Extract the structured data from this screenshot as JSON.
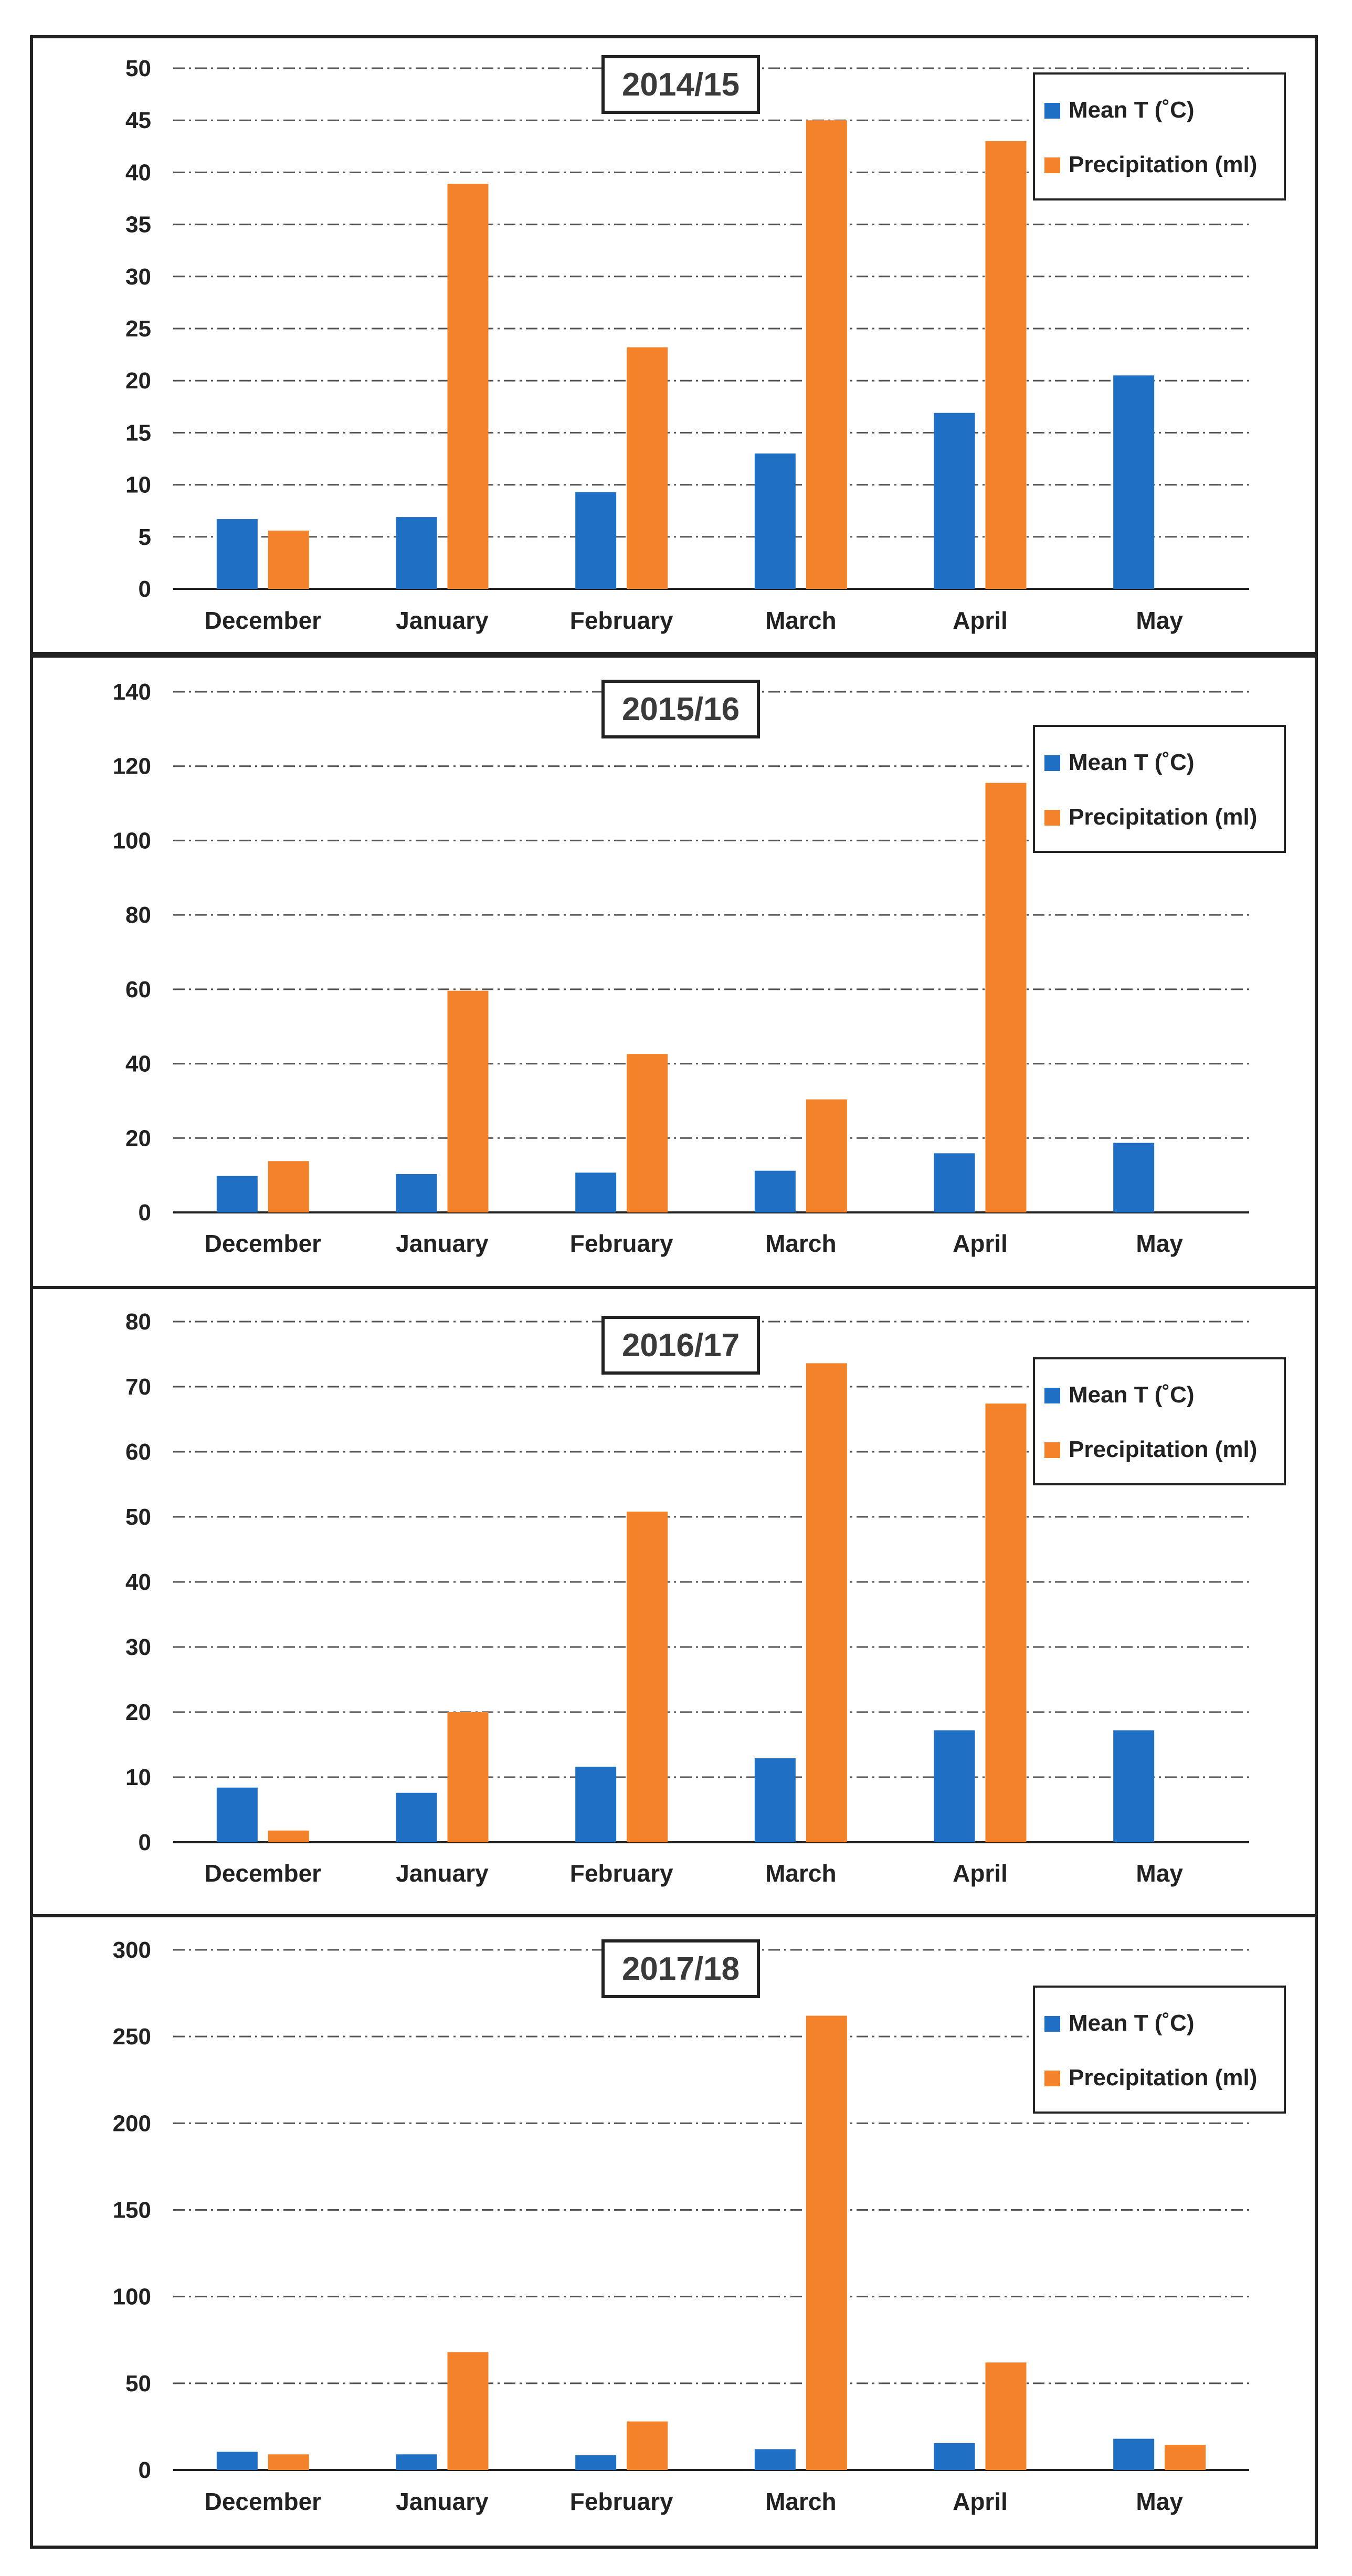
{
  "chart_data": [
    {
      "type": "bar",
      "title": "2014/15",
      "categories": [
        "December",
        "January",
        "February",
        "March",
        "April",
        "May"
      ],
      "series": [
        {
          "name": "Mean T (˚C)",
          "values": [
            6.7,
            6.9,
            9.3,
            13.0,
            16.9,
            20.5
          ]
        },
        {
          "name": "Precipitation (ml)",
          "values": [
            5.6,
            38.9,
            23.2,
            45.0,
            43.0,
            null
          ]
        }
      ],
      "ylim": [
        0,
        50
      ],
      "yticks": [
        0,
        5,
        10,
        15,
        20,
        25,
        30,
        35,
        40,
        45,
        50
      ],
      "grid": true,
      "legend": "top-right"
    },
    {
      "type": "bar",
      "title": "2015/16",
      "categories": [
        "December",
        "January",
        "February",
        "March",
        "April",
        "May"
      ],
      "series": [
        {
          "name": "Mean T (˚C)",
          "values": [
            9.8,
            10.3,
            10.7,
            11.2,
            15.9,
            18.7
          ]
        },
        {
          "name": "Precipitation (ml)",
          "values": [
            13.8,
            59.6,
            42.6,
            30.4,
            115.5,
            null
          ]
        }
      ],
      "ylim": [
        0,
        140
      ],
      "yticks": [
        0,
        20,
        40,
        60,
        80,
        100,
        120,
        140
      ],
      "grid": true,
      "legend": "top-right"
    },
    {
      "type": "bar",
      "title": "2016/17",
      "categories": [
        "December",
        "January",
        "February",
        "March",
        "April",
        "May"
      ],
      "series": [
        {
          "name": "Mean T (˚C)",
          "values": [
            8.4,
            7.6,
            11.6,
            12.9,
            17.2,
            17.2
          ]
        },
        {
          "name": "Precipitation (ml)",
          "values": [
            1.8,
            20.0,
            50.8,
            73.6,
            67.4,
            null
          ]
        }
      ],
      "ylim": [
        0,
        80
      ],
      "yticks": [
        0,
        10,
        20,
        30,
        40,
        50,
        60,
        70,
        80
      ],
      "grid": true,
      "legend": "top-right"
    },
    {
      "type": "bar",
      "title": "2017/18",
      "categories": [
        "December",
        "January",
        "February",
        "March",
        "April",
        "May"
      ],
      "series": [
        {
          "name": "Mean T (˚C)",
          "values": [
            10.5,
            9.0,
            8.5,
            12.0,
            15.5,
            18.0
          ]
        },
        {
          "name": "Precipitation (ml)",
          "values": [
            9.0,
            68.0,
            28.0,
            262.0,
            62.0,
            14.5
          ]
        }
      ],
      "ylim": [
        0,
        300
      ],
      "yticks": [
        0,
        50,
        100,
        150,
        200,
        250,
        300
      ],
      "grid": true,
      "legend": "top-right"
    }
  ],
  "colors": {
    "mean_t": "#1f6fc4",
    "precipitation": "#f4822a",
    "grid": "#555555",
    "axis": "#222222",
    "text": "#222222",
    "frame": "#222222"
  }
}
